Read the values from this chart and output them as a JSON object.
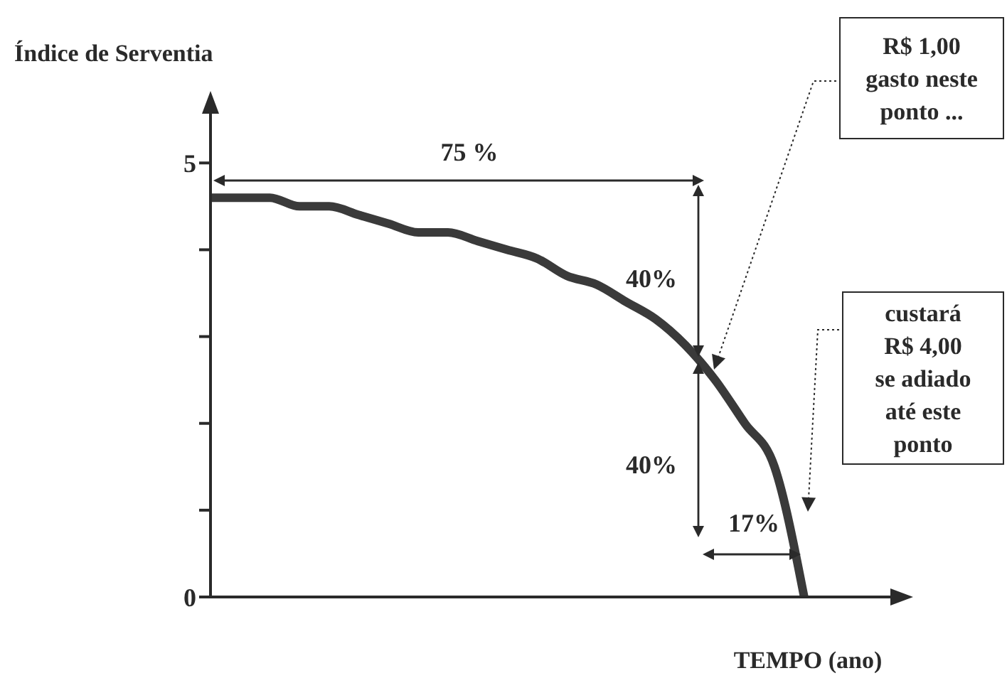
{
  "chart_data": {
    "type": "line",
    "ylabel": "Índice de Serventia",
    "xlabel": "TEMPO (ano)",
    "categories": [
      null,
      null,
      null,
      null,
      null,
      null,
      null,
      null,
      null,
      null,
      null,
      null,
      null,
      null,
      null,
      null,
      null,
      null,
      null,
      null,
      null,
      null,
      null,
      null
    ],
    "series": [
      {
        "color": "#3a3a3a",
        "values": [
          4.6,
          4.6,
          4.6,
          4.5,
          4.5,
          4.4,
          4.3,
          4.2,
          4.2,
          4.1,
          4.0,
          3.9,
          3.7,
          3.6,
          3.4,
          3.2,
          2.9,
          2.5,
          2.0,
          1.5,
          0,
          null,
          null,
          null
        ]
      }
    ],
    "ylim": [
      0,
      5.6
    ],
    "yticks": [
      0,
      {
        "value": 1,
        "label": null
      },
      {
        "value": 2,
        "label": null
      },
      {
        "value": 3,
        "label": null
      },
      {
        "value": 4,
        "label": null
      },
      5
    ],
    "tick_labels": "y",
    "marker": "none",
    "line_style": "solid",
    "annotations": [
      "75 %",
      "40%",
      "40%",
      "17%",
      "R$ 1,00\ngasto neste\nponto ...",
      "custará\nR$ 4,00\nse adiado\naté este\nponto"
    ]
  }
}
